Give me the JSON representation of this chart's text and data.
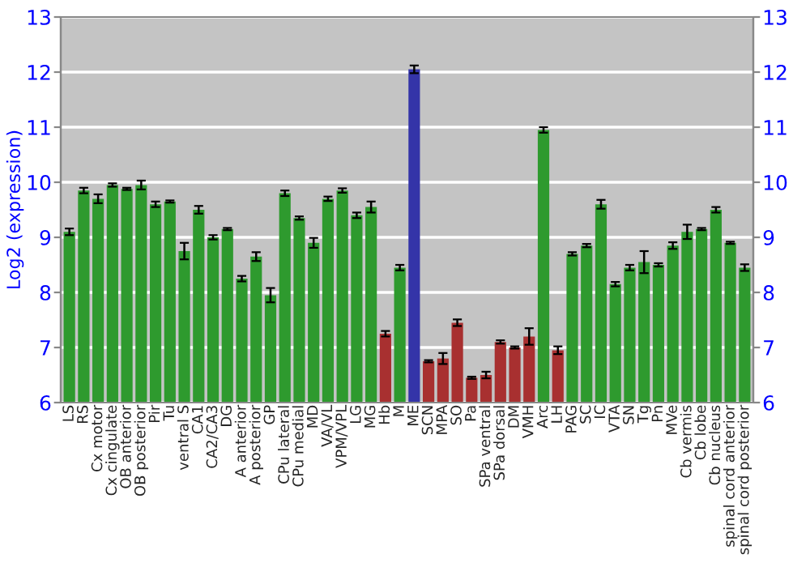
{
  "chart_data": {
    "type": "bar",
    "ylabel": "Log2 (expression)",
    "categories": [
      "LS",
      "RS",
      "Cx motor",
      "Cx cingulate",
      "OB anterior",
      "OB posterior",
      "Pir",
      "Tu",
      "ventral S",
      "CA1",
      "CA2/CA3",
      "DG",
      "A anterior",
      "A posterior",
      "GP",
      "CPu lateral",
      "CPu medial",
      "MD",
      "VA/VL",
      "VPM/VPL",
      "LG",
      "MG",
      "Hb",
      "M",
      "ME",
      "SCN",
      "MPA",
      "SO",
      "Pa",
      "SPa ventral",
      "SPa dorsal",
      "DM",
      "VMH",
      "Arc",
      "LH",
      "PAG",
      "SC",
      "IC",
      "VTA",
      "SN",
      "Tg",
      "Pn",
      "MVe",
      "Cb vermis",
      "Cb lobe",
      "Cb nucleus",
      "spinal cord anterior",
      "spinal cord posterior"
    ],
    "values": [
      9.1,
      9.85,
      9.7,
      9.95,
      9.88,
      9.95,
      9.6,
      9.65,
      8.75,
      9.5,
      9.0,
      9.15,
      8.25,
      8.65,
      7.95,
      9.8,
      9.35,
      8.9,
      9.7,
      9.85,
      9.4,
      9.55,
      7.25,
      8.45,
      12.05,
      6.75,
      6.8,
      7.45,
      6.45,
      6.5,
      7.1,
      7.0,
      7.2,
      10.95,
      6.95,
      8.7,
      8.85,
      9.6,
      8.15,
      8.45,
      8.55,
      8.5,
      8.85,
      9.1,
      9.15,
      9.5,
      8.9,
      8.45
    ],
    "errors": [
      0.06,
      0.05,
      0.08,
      0.03,
      0.02,
      0.08,
      0.05,
      0.02,
      0.15,
      0.07,
      0.04,
      0.02,
      0.05,
      0.08,
      0.13,
      0.05,
      0.03,
      0.09,
      0.04,
      0.04,
      0.05,
      0.1,
      0.05,
      0.05,
      0.07,
      0.02,
      0.1,
      0.06,
      0.02,
      0.06,
      0.03,
      0.02,
      0.15,
      0.05,
      0.07,
      0.03,
      0.03,
      0.08,
      0.04,
      0.05,
      0.2,
      0.03,
      0.06,
      0.13,
      0.02,
      0.05,
      0.02,
      0.06
    ],
    "colors": [
      "#2e9a2e",
      "#2e9a2e",
      "#2e9a2e",
      "#2e9a2e",
      "#2e9a2e",
      "#2e9a2e",
      "#2e9a2e",
      "#2e9a2e",
      "#2e9a2e",
      "#2e9a2e",
      "#2e9a2e",
      "#2e9a2e",
      "#2e9a2e",
      "#2e9a2e",
      "#2e9a2e",
      "#2e9a2e",
      "#2e9a2e",
      "#2e9a2e",
      "#2e9a2e",
      "#2e9a2e",
      "#2e9a2e",
      "#2e9a2e",
      "#a83030",
      "#2e9a2e",
      "#3434a8",
      "#a83030",
      "#a83030",
      "#a83030",
      "#a83030",
      "#a83030",
      "#a83030",
      "#a83030",
      "#a83030",
      "#2e9a2e",
      "#a83030",
      "#2e9a2e",
      "#2e9a2e",
      "#2e9a2e",
      "#2e9a2e",
      "#2e9a2e",
      "#2e9a2e",
      "#2e9a2e",
      "#2e9a2e",
      "#2e9a2e",
      "#2e9a2e",
      "#2e9a2e",
      "#2e9a2e",
      "#2e9a2e"
    ],
    "ylim": [
      6,
      13
    ],
    "yticks": [
      6,
      7,
      8,
      9,
      10,
      11,
      12,
      13
    ],
    "y2lim": [
      6,
      13
    ],
    "y2ticks": [
      6,
      7,
      8,
      9,
      10,
      11,
      12,
      13
    ],
    "grid": "y"
  }
}
